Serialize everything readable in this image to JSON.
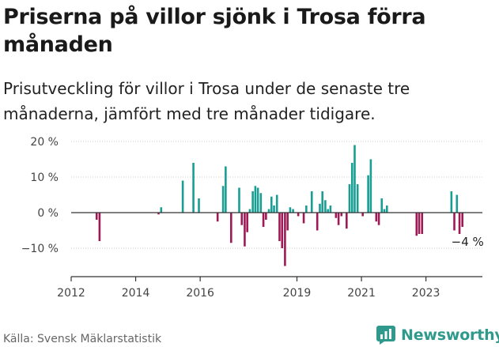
{
  "title": "Priserna på villor sjönk i Trosa förra månaden",
  "subtitle": "Prisutveckling för villor i Trosa under de senaste tre månaderna, jämfört med tre månader tidigare.",
  "source": "Källa: Svensk Mäklarstatistik",
  "brand": {
    "name": "Newsworthy",
    "logo_icon": "newsworthy-chart-logo-icon"
  },
  "colors": {
    "positive": "#1a9e93",
    "negative": "#9e1a55",
    "axis": "#333333",
    "grid": "#cccccc",
    "text": "#444444"
  },
  "chart_data": {
    "type": "bar",
    "title": "",
    "xlabel": "",
    "ylabel": "",
    "ylim": [
      -18,
      22
    ],
    "xlim": [
      2012.0,
      2024.75
    ],
    "y_ticks": [
      {
        "value": 20,
        "label": "20 %"
      },
      {
        "value": 10,
        "label": "10 %"
      },
      {
        "value": 0,
        "label": "0 %"
      },
      {
        "value": -10,
        "label": "−10 %"
      }
    ],
    "x_ticks": [
      {
        "value": 2012,
        "label": "2012"
      },
      {
        "value": 2014,
        "label": "2014"
      },
      {
        "value": 2016,
        "label": "2016"
      },
      {
        "value": 2019,
        "label": "2019"
      },
      {
        "value": 2021,
        "label": "2021"
      },
      {
        "value": 2023,
        "label": "2023"
      }
    ],
    "grid": "horizontal",
    "annotation": {
      "text": "−4 %",
      "x": 2024.29,
      "y": -4
    },
    "points": [
      {
        "x": 2012.79,
        "y": -2
      },
      {
        "x": 2012.88,
        "y": -8
      },
      {
        "x": 2014.71,
        "y": -0.5
      },
      {
        "x": 2014.79,
        "y": 1.5
      },
      {
        "x": 2015.46,
        "y": 9
      },
      {
        "x": 2015.79,
        "y": 14
      },
      {
        "x": 2015.96,
        "y": 4
      },
      {
        "x": 2016.54,
        "y": -2.5
      },
      {
        "x": 2016.71,
        "y": 7.5
      },
      {
        "x": 2016.79,
        "y": 13
      },
      {
        "x": 2016.96,
        "y": -8.5
      },
      {
        "x": 2017.21,
        "y": 7
      },
      {
        "x": 2017.29,
        "y": -3.5
      },
      {
        "x": 2017.38,
        "y": -9.5
      },
      {
        "x": 2017.46,
        "y": -5.5
      },
      {
        "x": 2017.54,
        "y": 1
      },
      {
        "x": 2017.63,
        "y": 6
      },
      {
        "x": 2017.71,
        "y": 7.5
      },
      {
        "x": 2017.79,
        "y": 7
      },
      {
        "x": 2017.88,
        "y": 5.5
      },
      {
        "x": 2017.96,
        "y": -4
      },
      {
        "x": 2018.04,
        "y": -2
      },
      {
        "x": 2018.13,
        "y": 1
      },
      {
        "x": 2018.21,
        "y": 4.5
      },
      {
        "x": 2018.29,
        "y": 2
      },
      {
        "x": 2018.38,
        "y": 5
      },
      {
        "x": 2018.46,
        "y": -8
      },
      {
        "x": 2018.54,
        "y": -10
      },
      {
        "x": 2018.63,
        "y": -15
      },
      {
        "x": 2018.71,
        "y": -5
      },
      {
        "x": 2018.79,
        "y": 1.5
      },
      {
        "x": 2018.88,
        "y": 1
      },
      {
        "x": 2019.04,
        "y": -1
      },
      {
        "x": 2019.21,
        "y": -3
      },
      {
        "x": 2019.29,
        "y": 2
      },
      {
        "x": 2019.46,
        "y": 6
      },
      {
        "x": 2019.63,
        "y": -5
      },
      {
        "x": 2019.71,
        "y": 2.5
      },
      {
        "x": 2019.79,
        "y": 6
      },
      {
        "x": 2019.88,
        "y": 3.5
      },
      {
        "x": 2019.96,
        "y": 1
      },
      {
        "x": 2020.04,
        "y": 2
      },
      {
        "x": 2020.21,
        "y": -1.5
      },
      {
        "x": 2020.29,
        "y": -3.5
      },
      {
        "x": 2020.38,
        "y": -1
      },
      {
        "x": 2020.54,
        "y": -4.5
      },
      {
        "x": 2020.63,
        "y": 8
      },
      {
        "x": 2020.71,
        "y": 14
      },
      {
        "x": 2020.79,
        "y": 19
      },
      {
        "x": 2020.88,
        "y": 8
      },
      {
        "x": 2021.04,
        "y": -1
      },
      {
        "x": 2021.21,
        "y": 10.5
      },
      {
        "x": 2021.29,
        "y": 15
      },
      {
        "x": 2021.46,
        "y": -2.5
      },
      {
        "x": 2021.54,
        "y": -3.5
      },
      {
        "x": 2021.63,
        "y": 4
      },
      {
        "x": 2021.71,
        "y": 1
      },
      {
        "x": 2021.79,
        "y": 2
      },
      {
        "x": 2022.71,
        "y": -6.5
      },
      {
        "x": 2022.79,
        "y": -6
      },
      {
        "x": 2022.88,
        "y": -6
      },
      {
        "x": 2023.79,
        "y": 6
      },
      {
        "x": 2023.88,
        "y": -5
      },
      {
        "x": 2023.96,
        "y": 5
      },
      {
        "x": 2024.04,
        "y": -6
      },
      {
        "x": 2024.13,
        "y": -4
      }
    ]
  }
}
